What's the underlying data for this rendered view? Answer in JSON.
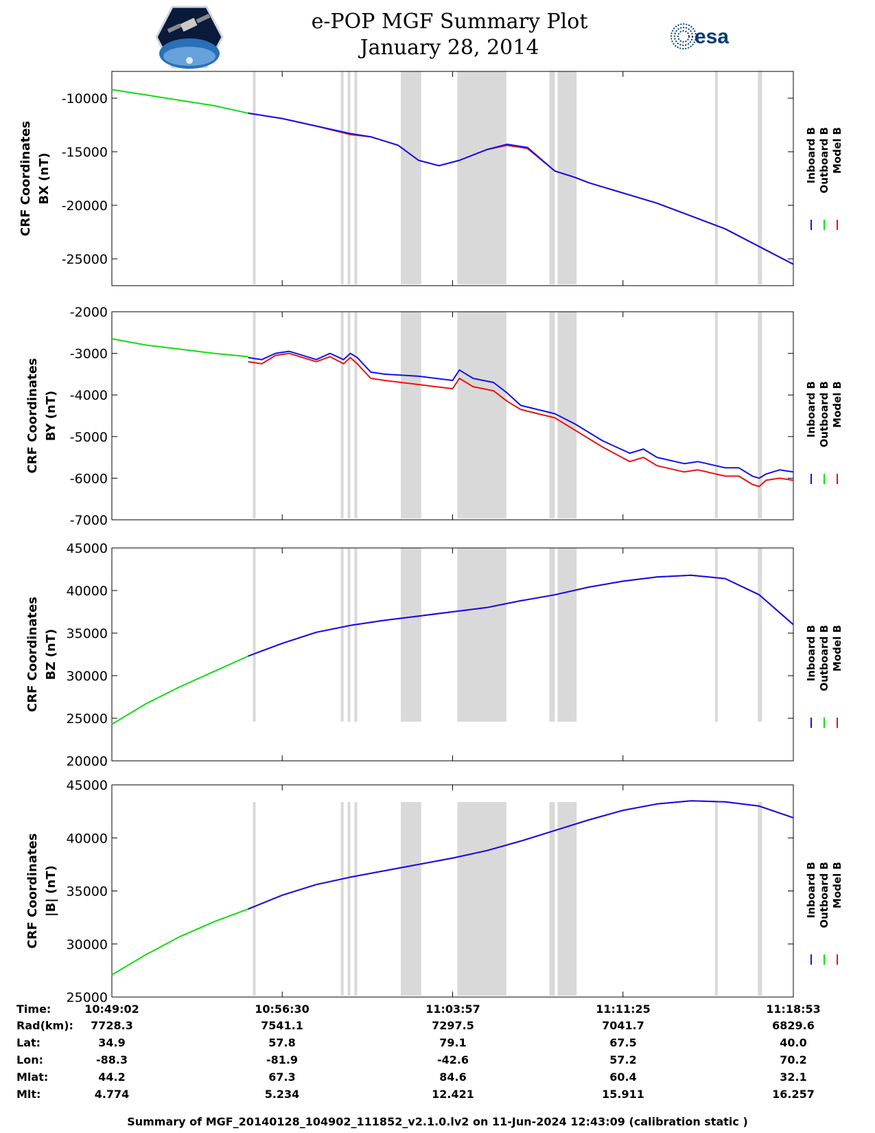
{
  "title": "e-POP MGF Summary Plot",
  "date": "January 28, 2014",
  "logos": {
    "left": "e-POP mission logo (satellite over Earth)",
    "right_text": "esa"
  },
  "colors": {
    "inboard": "#1010ee",
    "outboard": "#10dd10",
    "model": "#ee1010",
    "gap": "#d9d9d9"
  },
  "legend": [
    "Inboard B",
    "Outboard B",
    "Model B"
  ],
  "chart_data": [
    {
      "type": "line",
      "id": "bx",
      "ylabel_line1": "CRF Coordinates",
      "ylabel_line2": "BX (nT)",
      "ylim": [
        -27500,
        -7500
      ],
      "yticks": [
        -10000,
        -15000,
        -20000,
        -25000
      ],
      "ytick_labels": [
        "-10000",
        "-15000",
        "-20000",
        "-25000"
      ],
      "series": [
        {
          "name": "Outboard B",
          "x": [
            0,
            0.05,
            0.1,
            0.15,
            0.2
          ],
          "values": [
            -9200,
            -9700,
            -10200,
            -10700,
            -11400
          ]
        },
        {
          "name": "Model B",
          "x": [
            0.2,
            0.25,
            0.3,
            0.35,
            0.38,
            0.42,
            0.45,
            0.48,
            0.51,
            0.55,
            0.58,
            0.61,
            0.65,
            0.68,
            0.7,
            0.8,
            0.9,
            1.0
          ],
          "values": [
            -11400,
            -11900,
            -12600,
            -13400,
            -13600,
            -14400,
            -15800,
            -16300,
            -15800,
            -14800,
            -14400,
            -14700,
            -16800,
            -17400,
            -17900,
            -19800,
            -22200,
            -25500
          ]
        },
        {
          "name": "Inboard B",
          "x": [
            0.2,
            0.25,
            0.3,
            0.35,
            0.38,
            0.42,
            0.45,
            0.48,
            0.51,
            0.55,
            0.58,
            0.61,
            0.65,
            0.68,
            0.7,
            0.8,
            0.9,
            1.0
          ],
          "values": [
            -11400,
            -11900,
            -12600,
            -13300,
            -13600,
            -14400,
            -15800,
            -16300,
            -15800,
            -14800,
            -14300,
            -14600,
            -16800,
            -17400,
            -17900,
            -19800,
            -22200,
            -25500
          ]
        }
      ]
    },
    {
      "type": "line",
      "id": "by",
      "ylabel_line1": "CRF Coordinates",
      "ylabel_line2": "BY (nT)",
      "ylim": [
        -7000,
        -2000
      ],
      "yticks": [
        -2000,
        -3000,
        -4000,
        -5000,
        -6000,
        -7000
      ],
      "ytick_labels": [
        "-2000",
        "-3000",
        "-4000",
        "-5000",
        "-6000",
        "-7000"
      ],
      "series": [
        {
          "name": "Outboard B",
          "x": [
            0,
            0.05,
            0.1,
            0.15,
            0.2
          ],
          "values": [
            -2650,
            -2800,
            -2900,
            -3000,
            -3080
          ]
        },
        {
          "name": "Inboard B",
          "x": [
            0.2,
            0.22,
            0.24,
            0.26,
            0.28,
            0.3,
            0.32,
            0.34,
            0.35,
            0.36,
            0.38,
            0.4,
            0.45,
            0.5,
            0.51,
            0.53,
            0.56,
            0.58,
            0.6,
            0.65,
            0.68,
            0.72,
            0.76,
            0.78,
            0.8,
            0.84,
            0.86,
            0.9,
            0.92,
            0.94,
            0.95,
            0.96,
            0.98,
            1.0
          ],
          "values": [
            -3100,
            -3150,
            -3000,
            -2950,
            -3050,
            -3150,
            -3000,
            -3150,
            -3000,
            -3100,
            -3450,
            -3500,
            -3550,
            -3650,
            -3400,
            -3600,
            -3700,
            -3950,
            -4250,
            -4450,
            -4700,
            -5100,
            -5400,
            -5300,
            -5500,
            -5650,
            -5600,
            -5750,
            -5750,
            -5950,
            -6000,
            -5900,
            -5800,
            -5850
          ]
        },
        {
          "name": "Model B",
          "x": [
            0.2,
            0.22,
            0.24,
            0.26,
            0.28,
            0.3,
            0.32,
            0.34,
            0.35,
            0.36,
            0.38,
            0.4,
            0.45,
            0.5,
            0.51,
            0.53,
            0.56,
            0.58,
            0.6,
            0.65,
            0.68,
            0.72,
            0.76,
            0.78,
            0.8,
            0.84,
            0.86,
            0.9,
            0.92,
            0.94,
            0.95,
            0.96,
            0.98,
            1.0
          ],
          "values": [
            -3200,
            -3250,
            -3050,
            -3000,
            -3100,
            -3200,
            -3080,
            -3250,
            -3100,
            -3250,
            -3600,
            -3650,
            -3750,
            -3850,
            -3600,
            -3800,
            -3900,
            -4150,
            -4350,
            -4550,
            -4850,
            -5250,
            -5600,
            -5500,
            -5700,
            -5850,
            -5800,
            -5950,
            -5950,
            -6150,
            -6200,
            -6050,
            -6000,
            -6050
          ]
        }
      ]
    },
    {
      "type": "line",
      "id": "bz",
      "ylabel_line1": "CRF Coordinates",
      "ylabel_line2": "BZ (nT)",
      "ylim": [
        20000,
        45000
      ],
      "yticks": [
        20000,
        25000,
        30000,
        35000,
        40000,
        45000
      ],
      "ytick_labels": [
        "20000",
        "25000",
        "30000",
        "35000",
        "40000",
        "45000"
      ],
      "series": [
        {
          "name": "Outboard B",
          "x": [
            0,
            0.05,
            0.1,
            0.15,
            0.2
          ],
          "values": [
            24300,
            26700,
            28700,
            30500,
            32300
          ]
        },
        {
          "name": "Model B",
          "x": [
            0.2,
            0.25,
            0.3,
            0.35,
            0.4,
            0.45,
            0.5,
            0.55,
            0.6,
            0.65,
            0.7,
            0.75,
            0.8,
            0.85,
            0.9,
            0.95,
            1.0
          ],
          "values": [
            32300,
            33800,
            35100,
            35900,
            36500,
            37000,
            37500,
            38000,
            38800,
            39500,
            40400,
            41100,
            41600,
            41800,
            41400,
            39500,
            36000
          ]
        },
        {
          "name": "Inboard B",
          "x": [
            0.2,
            0.25,
            0.3,
            0.35,
            0.4,
            0.45,
            0.5,
            0.55,
            0.6,
            0.65,
            0.7,
            0.75,
            0.8,
            0.85,
            0.9,
            0.95,
            1.0
          ],
          "values": [
            32300,
            33800,
            35100,
            35900,
            36500,
            37000,
            37500,
            38000,
            38800,
            39500,
            40400,
            41100,
            41600,
            41800,
            41400,
            39500,
            36000
          ]
        }
      ]
    },
    {
      "type": "line",
      "id": "bmag",
      "ylabel_line1": "CRF Coordinates",
      "ylabel_line2": "|B| (nT)",
      "ylim": [
        25000,
        45000
      ],
      "yticks": [
        25000,
        30000,
        35000,
        40000,
        45000
      ],
      "ytick_labels": [
        "25000",
        "30000",
        "35000",
        "40000",
        "45000"
      ],
      "series": [
        {
          "name": "Outboard B",
          "x": [
            0,
            0.05,
            0.1,
            0.15,
            0.2
          ],
          "values": [
            27100,
            29000,
            30700,
            32100,
            33300
          ]
        },
        {
          "name": "Model B",
          "x": [
            0.2,
            0.25,
            0.3,
            0.35,
            0.4,
            0.45,
            0.5,
            0.55,
            0.6,
            0.65,
            0.7,
            0.75,
            0.8,
            0.85,
            0.9,
            0.95,
            1.0
          ],
          "values": [
            33300,
            34600,
            35600,
            36300,
            36900,
            37500,
            38100,
            38800,
            39700,
            40700,
            41700,
            42600,
            43200,
            43500,
            43400,
            43000,
            41900
          ]
        },
        {
          "name": "Inboard B",
          "x": [
            0.2,
            0.25,
            0.3,
            0.35,
            0.4,
            0.45,
            0.5,
            0.55,
            0.6,
            0.65,
            0.7,
            0.75,
            0.8,
            0.85,
            0.9,
            0.95,
            1.0
          ],
          "values": [
            33300,
            34600,
            35600,
            36300,
            36900,
            37500,
            38100,
            38800,
            39700,
            40700,
            41700,
            42600,
            43200,
            43500,
            43400,
            43000,
            41900
          ]
        }
      ]
    }
  ],
  "data_gaps": [
    [
      0.207,
      0.211
    ],
    [
      0.336,
      0.34
    ],
    [
      0.346,
      0.35
    ],
    [
      0.356,
      0.36
    ],
    [
      0.424,
      0.454
    ],
    [
      0.507,
      0.579
    ],
    [
      0.642,
      0.65
    ],
    [
      0.654,
      0.682
    ],
    [
      0.885,
      0.889
    ],
    [
      0.948,
      0.954
    ]
  ],
  "xticks": [
    0,
    0.25,
    0.5,
    0.75,
    1.0
  ],
  "stats": {
    "labels": [
      "Time:",
      "Rad(km):",
      "Lat:",
      "Lon:",
      "Mlat:",
      "Mlt:"
    ],
    "columns": [
      [
        "10:49:02",
        "7728.3",
        "34.9",
        "-88.3",
        "44.2",
        "4.774"
      ],
      [
        "10:56:30",
        "7541.1",
        "57.8",
        "-81.9",
        "67.3",
        "5.234"
      ],
      [
        "11:03:57",
        "7297.5",
        "79.1",
        "-42.6",
        "84.6",
        "12.421"
      ],
      [
        "11:11:25",
        "7041.7",
        "67.5",
        "57.2",
        "60.4",
        "15.911"
      ],
      [
        "11:18:53",
        "6829.6",
        "40.0",
        "70.2",
        "32.1",
        "16.257"
      ]
    ]
  },
  "footer": "Summary of MGF_20140128_104902_111852_v2.1.0.lv2 on 11-Jun-2024 12:43:09 (calibration static )"
}
